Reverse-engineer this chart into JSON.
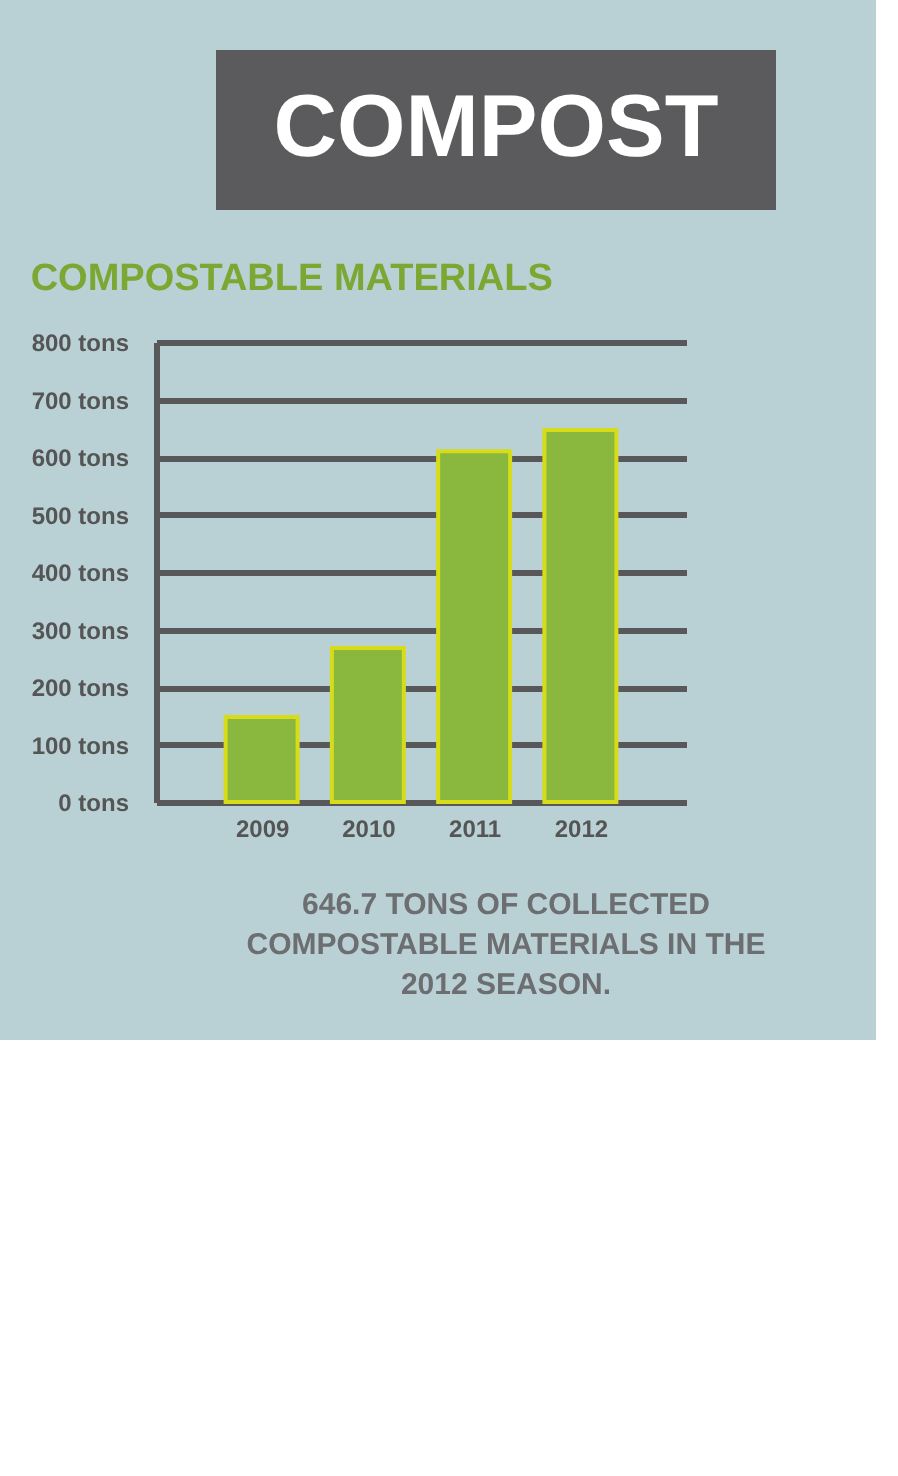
{
  "chart_data": {
    "type": "bar",
    "title": "COMPOST",
    "subtitle": "COMPOSTABLE MATERIALS",
    "categories": [
      "2009",
      "2010",
      "2011",
      "2012"
    ],
    "values": [
      148,
      268,
      610,
      647
    ],
    "color": "#8ab83f",
    "ylim": [
      0,
      800
    ],
    "yticks": [
      {
        "value": 0,
        "label": "0 tons"
      },
      {
        "value": 100,
        "label": "100 tons"
      },
      {
        "value": 200,
        "label": "200 tons"
      },
      {
        "value": 300,
        "label": "300 tons"
      },
      {
        "value": 400,
        "label": "400 tons"
      },
      {
        "value": 500,
        "label": "500 tons"
      },
      {
        "value": 600,
        "label": "600 tons"
      },
      {
        "value": 700,
        "label": "700 tons"
      },
      {
        "value": 800,
        "label": "800 tons"
      }
    ],
    "grid": "y",
    "annotations": [
      "646.7 TONS OF COLLECTED COMPOSTABLE MATERIALS IN THE 2012 SEASON."
    ]
  }
}
